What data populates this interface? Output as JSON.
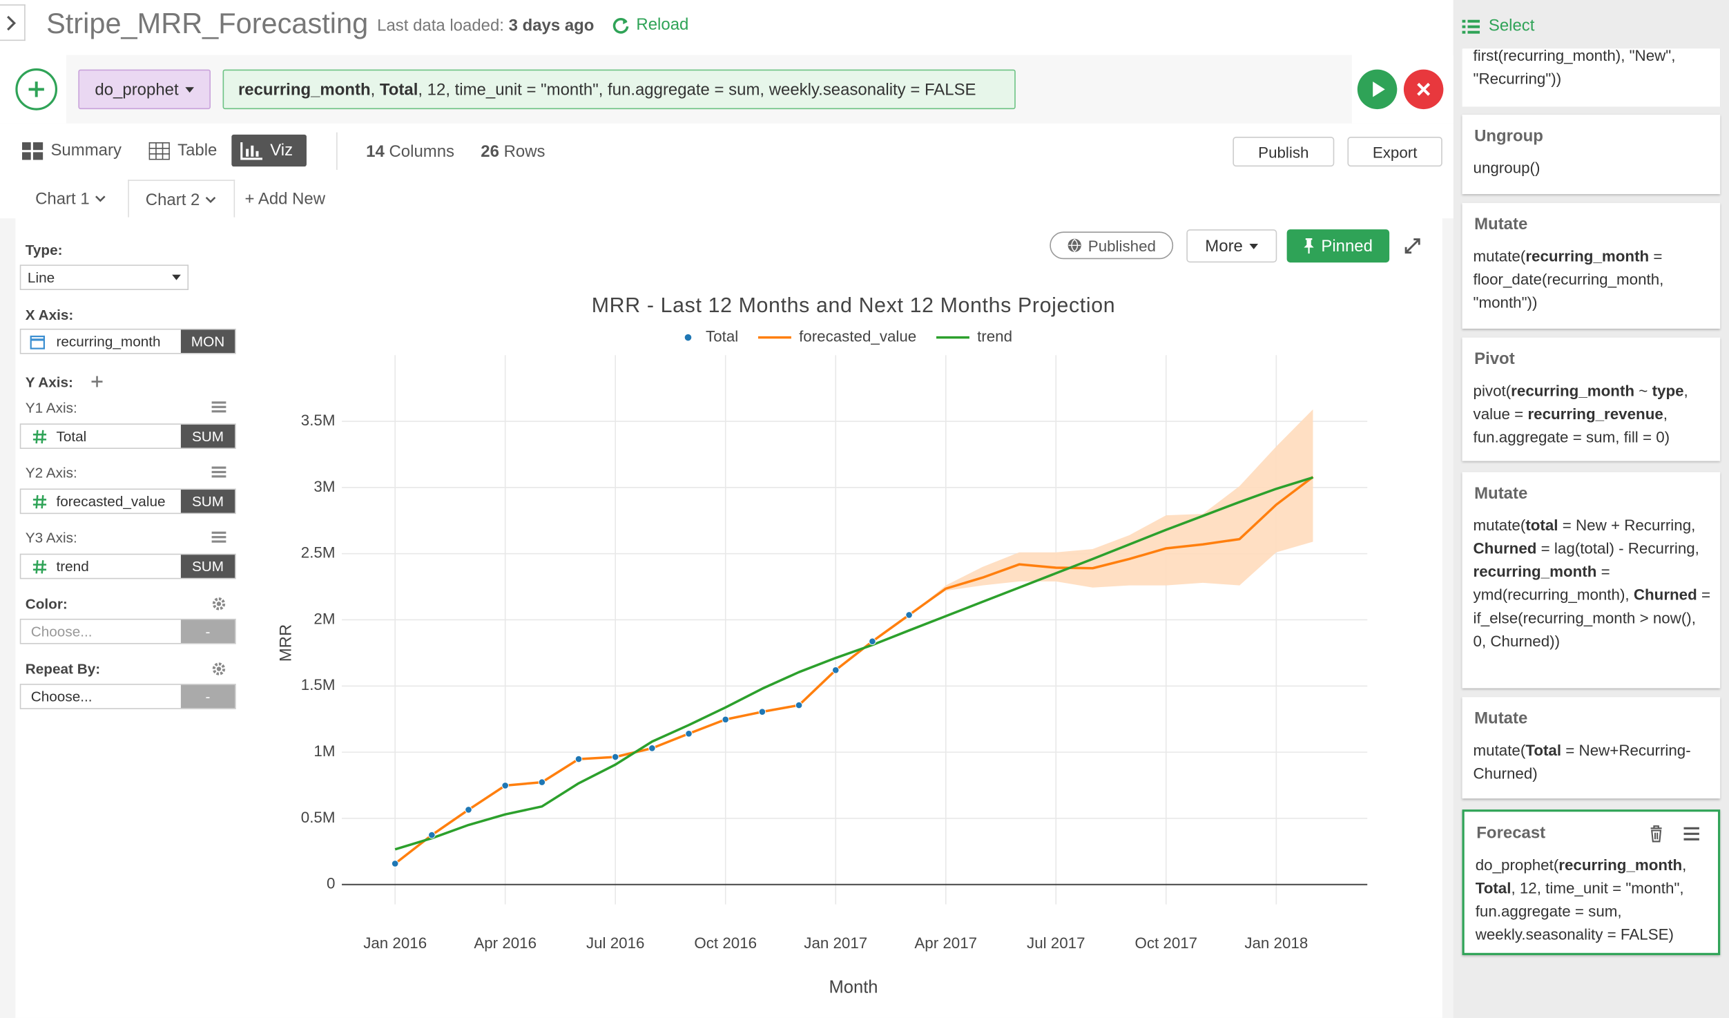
{
  "header": {
    "title": "Stripe_MRR_Forecasting",
    "last_loaded_label": "Last data loaded:",
    "last_loaded_value": "3 days ago",
    "reload": "Reload",
    "select": "Select"
  },
  "command": {
    "function": "do_prophet",
    "args": [
      {
        "text": "recurring_month",
        "bold": true
      },
      {
        "text": ", "
      },
      {
        "text": "Total",
        "bold": true
      },
      {
        "text": ", 12, time_unit = \"month\", fun.aggregate = sum, weekly.seasonality = FALSE"
      }
    ]
  },
  "view_tabs": {
    "items": [
      "Summary",
      "Table",
      "Viz"
    ],
    "active": 2
  },
  "info": {
    "columns": {
      "count": 14,
      "label": "Columns"
    },
    "rows": {
      "count": 26,
      "label": "Rows"
    }
  },
  "actions": [
    "Publish",
    "Export"
  ],
  "chart_tabs": {
    "items": [
      "Chart 1",
      "Chart 2"
    ],
    "active": 1,
    "add": "+ Add New"
  },
  "config": {
    "type": {
      "label": "Type:",
      "value": "Line"
    },
    "x_axis": {
      "label": "X Axis:",
      "field": "recurring_month",
      "agg": "MON"
    },
    "y_axis": {
      "label": "Y Axis:",
      "axes": [
        {
          "label": "Y1 Axis:",
          "field": "Total",
          "agg": "SUM"
        },
        {
          "label": "Y2 Axis:",
          "field": "forecasted_value",
          "agg": "SUM"
        },
        {
          "label": "Y3 Axis:",
          "field": "trend",
          "agg": "SUM"
        }
      ]
    },
    "color": {
      "label": "Color:",
      "placeholder": "Choose...",
      "tag": "-"
    },
    "repeat_by": {
      "label": "Repeat By:",
      "placeholder": "Choose...",
      "tag": "-"
    }
  },
  "chart_toolbar": {
    "published": "Published",
    "more": "More",
    "pinned": "Pinned"
  },
  "steps": [
    {
      "code": [
        {
          "text": "first(recurring_month), \"New\", \"Recurring\"))"
        }
      ]
    },
    {
      "title": "Ungroup",
      "code": [
        {
          "text": "ungroup()"
        }
      ]
    },
    {
      "title": "Mutate",
      "code": [
        {
          "text": "mutate("
        },
        {
          "text": "recurring_month",
          "bold": true
        },
        {
          "text": " = floor_date(recurring_month, \"month\"))"
        }
      ]
    },
    {
      "title": "Pivot",
      "code": [
        {
          "text": "pivot("
        },
        {
          "text": "recurring_month",
          "bold": true
        },
        {
          "text": " ~ "
        },
        {
          "text": "type",
          "bold": true
        },
        {
          "text": ", value = "
        },
        {
          "text": "recurring_revenue",
          "bold": true
        },
        {
          "text": ", fun.aggregate = sum, fill = 0)"
        }
      ]
    },
    {
      "title": "Mutate",
      "code": [
        {
          "text": "mutate("
        },
        {
          "text": "total",
          "bold": true
        },
        {
          "text": " = New + Recurring, "
        },
        {
          "text": "Churned",
          "bold": true
        },
        {
          "text": " = lag(total) - Recurring, "
        },
        {
          "text": "recurring_month",
          "bold": true
        },
        {
          "text": " = ymd(recurring_month), "
        },
        {
          "text": "Churned",
          "bold": true
        },
        {
          "text": " = if_else(recurring_month > now(), 0, Churned))"
        }
      ]
    },
    {
      "title": "Mutate",
      "code": [
        {
          "text": "mutate("
        },
        {
          "text": "Total",
          "bold": true
        },
        {
          "text": " = New+Recurring-Churned)"
        }
      ]
    },
    {
      "title": "Forecast",
      "selected": true,
      "code": [
        {
          "text": "do_prophet("
        },
        {
          "text": "recurring_month",
          "bold": true
        },
        {
          "text": ", "
        },
        {
          "text": "Total",
          "bold": true
        },
        {
          "text": ", 12, time_unit = \"month\", fun.aggregate = sum, weekly.seasonality = FALSE)"
        }
      ]
    }
  ],
  "chart_data": {
    "type": "line",
    "title": "MRR - Last 12 Months and Next 12 Months Projection",
    "x_label": "Month",
    "y_label": "MRR",
    "legend": "top",
    "grid": true,
    "x": [
      "2016-01",
      "2016-02",
      "2016-03",
      "2016-04",
      "2016-05",
      "2016-06",
      "2016-07",
      "2016-08",
      "2016-09",
      "2016-10",
      "2016-11",
      "2016-12",
      "2017-01",
      "2017-02",
      "2017-03",
      "2017-04",
      "2017-05",
      "2017-06",
      "2017-07",
      "2017-08",
      "2017-09",
      "2017-10",
      "2017-11",
      "2017-12",
      "2018-01",
      "2018-02"
    ],
    "series": [
      {
        "name": "Total",
        "color": "#1f77b4",
        "mode": "markers",
        "values": [
          158000,
          374000,
          565000,
          748000,
          773000,
          948000,
          964000,
          1030000,
          1140000,
          1247000,
          1305000,
          1355000,
          1620000,
          1837000,
          2037000,
          null,
          null,
          null,
          null,
          null,
          null,
          null,
          null,
          null,
          null,
          null
        ]
      },
      {
        "name": "forecasted_value",
        "color": "#ff7f0e",
        "mode": "lines",
        "values": [
          158000,
          374000,
          565000,
          748000,
          773000,
          948000,
          964000,
          1030000,
          1140000,
          1247000,
          1305000,
          1355000,
          1620000,
          1837000,
          2037000,
          2236000,
          2319000,
          2419000,
          2394000,
          2390000,
          2460000,
          2540000,
          2570000,
          2610000,
          2870000,
          3080000
        ]
      },
      {
        "name": "trend",
        "color": "#2ca02c",
        "mode": "lines",
        "values": [
          266000,
          350000,
          450000,
          530000,
          590000,
          765000,
          906000,
          1080000,
          1205000,
          1338000,
          1480000,
          1605000,
          1712000,
          1810000,
          1920000,
          2028000,
          2136000,
          2244000,
          2352000,
          2460000,
          2570000,
          2680000,
          2785000,
          2890000,
          2990000,
          3076000
        ]
      }
    ],
    "band": {
      "color": "#ffdcbd",
      "upper": [
        null,
        null,
        null,
        null,
        null,
        null,
        null,
        null,
        null,
        null,
        null,
        null,
        null,
        null,
        2037000,
        2260000,
        2400000,
        2510000,
        2510000,
        2535000,
        2640000,
        2790000,
        2800000,
        3010000,
        3310000,
        3590000
      ],
      "lower": [
        null,
        null,
        null,
        null,
        null,
        null,
        null,
        null,
        null,
        null,
        null,
        null,
        null,
        null,
        2037000,
        2220000,
        2260000,
        2290000,
        2290000,
        2244000,
        2260000,
        2260000,
        2280000,
        2260000,
        2510000,
        2590000
      ]
    },
    "xlim": [
      "2015-12",
      "2018-03"
    ],
    "xticks": [
      {
        "value": "2016-01",
        "label": "Jan 2016"
      },
      {
        "value": "2016-04",
        "label": "Apr 2016"
      },
      {
        "value": "2016-07",
        "label": "Jul 2016"
      },
      {
        "value": "2016-10",
        "label": "Oct 2016"
      },
      {
        "value": "2017-01",
        "label": "Jan 2017"
      },
      {
        "value": "2017-04",
        "label": "Apr 2017"
      },
      {
        "value": "2017-07",
        "label": "Jul 2017"
      },
      {
        "value": "2017-10",
        "label": "Oct 2017"
      },
      {
        "value": "2018-01",
        "label": "Jan 2018"
      }
    ],
    "ylim": [
      -150000,
      4000000
    ],
    "yticks": [
      0,
      {
        "value": 500000,
        "label": "0.5M"
      },
      {
        "value": 1000000,
        "label": "1M"
      },
      {
        "value": 1500000,
        "label": "1.5M"
      },
      {
        "value": 2000000,
        "label": "2M"
      },
      {
        "value": 2500000,
        "label": "2.5M"
      },
      {
        "value": 3000000,
        "label": "3M"
      },
      {
        "value": 3500000,
        "label": "3.5M"
      }
    ]
  }
}
